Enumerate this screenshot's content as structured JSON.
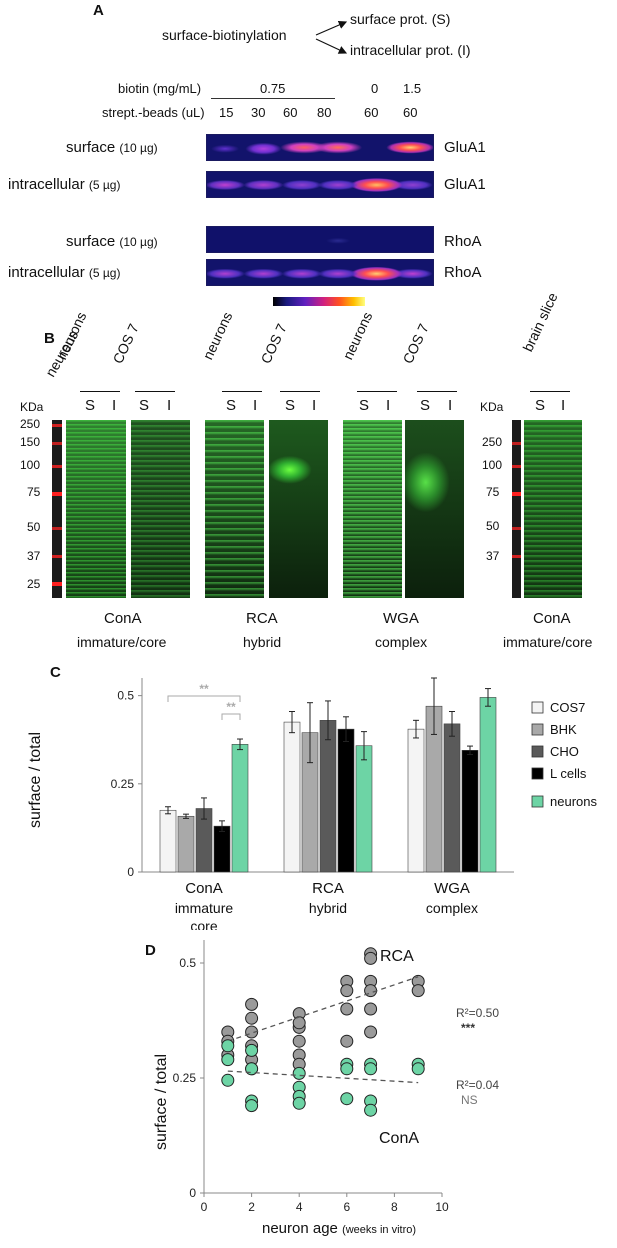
{
  "panelA": {
    "label": "A",
    "scheme": {
      "source": "surface-biotinylation",
      "out1": "surface prot. (S)",
      "out2": "intracellular prot. (I)"
    },
    "biotin_label": "biotin (mg/mL)",
    "biotin_values": [
      "0.75",
      "0",
      "1.5"
    ],
    "beads_label": "strept.-beads (uL)",
    "beads_values": [
      "15",
      "30",
      "60",
      "80",
      "60",
      "60"
    ],
    "rows": [
      {
        "label": "surface",
        "amount": "(10 µg)",
        "protein": "GluA1"
      },
      {
        "label": "intracellular",
        "amount": "(5 µg)",
        "protein": "GluA1"
      },
      {
        "label": "surface",
        "amount": "(10 µg)",
        "protein": "RhoA"
      },
      {
        "label": "intracellular",
        "amount": "(5 µg)",
        "protein": "RhoA"
      }
    ]
  },
  "panelB": {
    "label": "B",
    "kda_label": "KDa",
    "ladder_left": [
      "250",
      "150",
      "100",
      "75",
      "50",
      "37",
      "25"
    ],
    "ladder_right": [
      "250",
      "100",
      "75",
      "50",
      "37"
    ],
    "group_labels": [
      "neurons",
      "COS 7",
      "neurons",
      "COS 7",
      "neurons",
      "COS 7",
      "brain slice"
    ],
    "lane_s": "S",
    "lane_i": "I",
    "lectins": [
      {
        "name": "ConA",
        "type": "immature/core"
      },
      {
        "name": "RCA",
        "type": "hybrid"
      },
      {
        "name": "WGA",
        "type": "complex"
      },
      {
        "name": "ConA",
        "type": "immature/core"
      }
    ]
  },
  "panelC": {
    "label": "C",
    "legend": [
      "COS7",
      "BHK",
      "CHO",
      "L cells",
      "neurons"
    ],
    "sig": "**",
    "xgroups": [
      {
        "name": "ConA",
        "sub1": "immature",
        "sub2": "core"
      },
      {
        "name": "RCA",
        "sub1": "hybrid",
        "sub2": ""
      },
      {
        "name": "WGA",
        "sub1": "complex",
        "sub2": ""
      }
    ],
    "yticks": [
      "0",
      "0.25",
      "0.5"
    ],
    "ylabel": "surface / total"
  },
  "panelD": {
    "label": "D",
    "ylabel": "surface / total",
    "xlabel_main": "neuron age",
    "xlabel_unit": "(weeks in vitro)",
    "series_rca": "RCA",
    "series_cona": "ConA",
    "r2_rca": "R²=0.50",
    "sig_rca": "***",
    "r2_cona": "R²=0.04",
    "sig_cona": "NS",
    "yticks": [
      "0",
      "0.25",
      "0.5"
    ],
    "xticks": [
      "0",
      "2",
      "4",
      "6",
      "8",
      "10"
    ]
  },
  "chart_data": [
    {
      "type": "bar",
      "categories": [
        "ConA",
        "RCA",
        "WGA"
      ],
      "series": [
        {
          "name": "COS7",
          "values": [
            0.175,
            0.425,
            0.405
          ],
          "err": [
            0.01,
            0.03,
            0.025
          ],
          "color": "#f4f4f4"
        },
        {
          "name": "BHK",
          "values": [
            0.158,
            0.395,
            0.47
          ],
          "err": [
            0.006,
            0.085,
            0.08
          ],
          "color": "#a9a9a9"
        },
        {
          "name": "CHO",
          "values": [
            0.18,
            0.43,
            0.42
          ],
          "err": [
            0.03,
            0.055,
            0.035
          ],
          "color": "#5a5a5a"
        },
        {
          "name": "L cells",
          "values": [
            0.13,
            0.405,
            0.345
          ],
          "err": [
            0.015,
            0.035,
            0.012
          ],
          "color": "#000000"
        },
        {
          "name": "neurons",
          "values": [
            0.362,
            0.358,
            0.495
          ],
          "err": [
            0.015,
            0.04,
            0.025
          ],
          "color": "#6dd4a5"
        }
      ],
      "ylabel": "surface / total",
      "ylim": [
        0,
        0.55
      ],
      "yticks": [
        0,
        0.25,
        0.5
      ],
      "annotations": [
        "**",
        "**"
      ],
      "legend": "right"
    },
    {
      "type": "scatter",
      "series": [
        {
          "name": "RCA",
          "color": "#9a9a9a",
          "x": [
            1,
            1,
            1,
            2,
            2,
            2,
            2,
            2,
            2,
            4,
            4,
            4,
            4,
            4,
            4,
            6,
            6,
            6,
            6,
            7,
            7,
            7,
            7,
            7,
            7,
            9,
            9
          ],
          "y": [
            0.35,
            0.33,
            0.3,
            0.41,
            0.38,
            0.35,
            0.32,
            0.29,
            0.27,
            0.39,
            0.36,
            0.33,
            0.3,
            0.28,
            0.37,
            0.46,
            0.44,
            0.4,
            0.33,
            0.52,
            0.51,
            0.46,
            0.44,
            0.4,
            0.35,
            0.46,
            0.44
          ],
          "trend": [
            [
              1,
              0.33
            ],
            [
              9,
              0.47
            ]
          ]
        },
        {
          "name": "ConA",
          "color": "#6dd4a5",
          "x": [
            1,
            1,
            1,
            2,
            2,
            2,
            2,
            4,
            4,
            4,
            4,
            6,
            6,
            6,
            7,
            7,
            7,
            7,
            9,
            9
          ],
          "y": [
            0.32,
            0.29,
            0.245,
            0.31,
            0.27,
            0.2,
            0.19,
            0.26,
            0.23,
            0.21,
            0.195,
            0.28,
            0.27,
            0.205,
            0.28,
            0.27,
            0.2,
            0.18,
            0.28,
            0.27
          ],
          "trend": [
            [
              1,
              0.265
            ],
            [
              9,
              0.24
            ]
          ]
        }
      ],
      "xlabel": "neuron age (weeks in vitro)",
      "ylabel": "surface / total",
      "xlim": [
        0,
        10
      ],
      "ylim": [
        0,
        0.55
      ],
      "xticks": [
        0,
        2,
        4,
        6,
        8,
        10
      ],
      "yticks": [
        0,
        0.25,
        0.5
      ]
    }
  ]
}
